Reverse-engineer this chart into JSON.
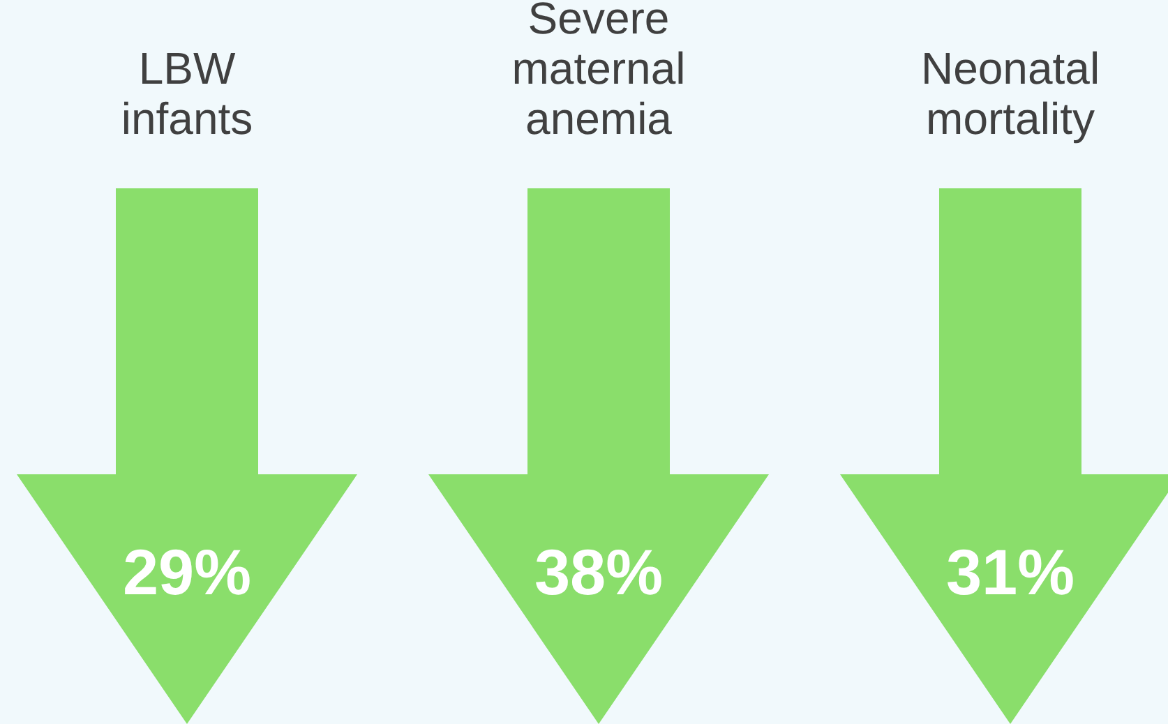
{
  "chart_data": {
    "type": "other",
    "categories": [
      "LBW infants",
      "Severe maternal anemia",
      "Neonatal mortality"
    ],
    "values": [
      29,
      38,
      31
    ],
    "value_labels": [
      "29%",
      "38%",
      "31%"
    ],
    "colors": [
      "#8ade6b",
      "#8ade6b",
      "#8ade6b"
    ]
  }
}
